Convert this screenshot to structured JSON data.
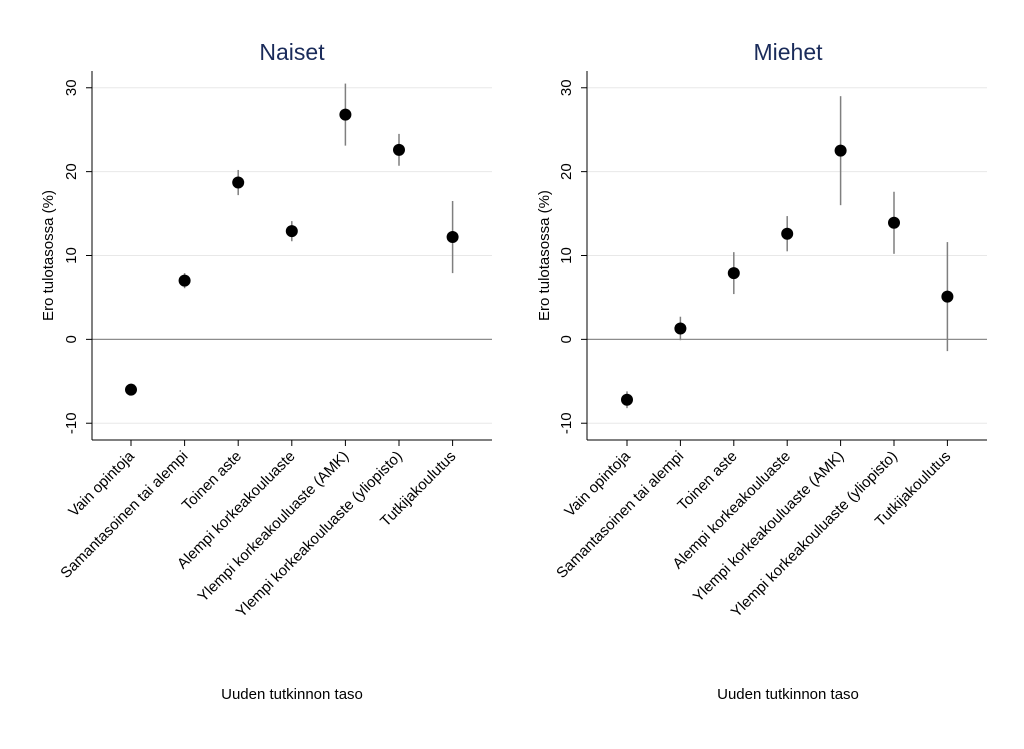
{
  "chart_data": [
    {
      "type": "scatter",
      "title": "Naiset",
      "xlabel": "Uuden tutkinnon taso",
      "ylabel": "Ero tulotasossa (%)",
      "ylim": [
        -12,
        32
      ],
      "yticks": [
        -10,
        0,
        10,
        20,
        30
      ],
      "grid": true,
      "categories": [
        "Vain opintoja",
        "Samantasoinen tai alempi",
        "Toinen aste",
        "Alempi korkeakouluaste",
        "Ylempi korkeakouluaste (AMK)",
        "Ylempi korkeakouluaste (yliopisto)",
        "Tutkijakoulutus"
      ],
      "values": [
        -6.0,
        7.0,
        18.7,
        12.9,
        26.8,
        22.6,
        12.2
      ],
      "ci_low": [
        -6.7,
        6.1,
        17.2,
        11.7,
        23.1,
        20.7,
        7.9
      ],
      "ci_high": [
        -5.3,
        7.9,
        20.2,
        14.1,
        30.5,
        24.5,
        16.5
      ]
    },
    {
      "type": "scatter",
      "title": "Miehet",
      "xlabel": "Uuden tutkinnon taso",
      "ylabel": "Ero tulotasossa (%)",
      "ylim": [
        -12,
        32
      ],
      "yticks": [
        -10,
        0,
        10,
        20,
        30
      ],
      "grid": true,
      "categories": [
        "Vain opintoja",
        "Samantasoinen tai alempi",
        "Toinen aste",
        "Alempi korkeakouluaste",
        "Ylempi korkeakouluaste (AMK)",
        "Ylempi korkeakouluaste (yliopisto)",
        "Tutkijakoulutus"
      ],
      "values": [
        -7.2,
        1.3,
        7.9,
        12.6,
        22.5,
        13.9,
        5.1
      ],
      "ci_low": [
        -8.2,
        -0.1,
        5.4,
        10.5,
        16.0,
        10.2,
        -1.4
      ],
      "ci_high": [
        -6.2,
        2.7,
        10.4,
        14.7,
        29.0,
        17.6,
        11.6
      ]
    }
  ],
  "colors": {
    "title": "#1a2b5a",
    "marker": "#000000",
    "ci_line": "#7f7f7f",
    "grid": "#e8e8e8",
    "zero_line": "#8c8c8c",
    "axis": "#000000"
  }
}
